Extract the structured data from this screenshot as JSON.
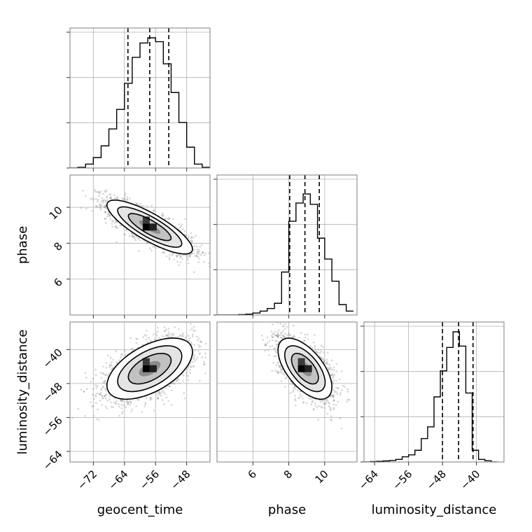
{
  "chart_data": {
    "type": "corner",
    "parameters": [
      "geocent_time",
      "phase",
      "luminosity_distance"
    ],
    "axes": {
      "geocent_time": {
        "range": [
          -78,
          -42
        ],
        "ticks": [
          -72,
          -64,
          -56,
          -48
        ],
        "tick_labels": [
          "−72",
          "−64",
          "−56",
          "−48"
        ],
        "label": "geocent_time"
      },
      "phase": {
        "range": [
          4.0,
          11.8
        ],
        "ticks": [
          6,
          8,
          10
        ],
        "tick_labels": [
          "6",
          "8",
          "10"
        ],
        "label": "phase"
      },
      "luminosity_distance": {
        "range": [
          -66.5,
          -33.5
        ],
        "ticks": [
          -64,
          -56,
          -48,
          -40
        ],
        "tick_labels": [
          "−64",
          "−56",
          "−48",
          "−40"
        ],
        "label": "luminosity_distance"
      }
    },
    "marginals": [
      {
        "parameter": "geocent_time",
        "quantiles": [
          -63.1,
          -57.5,
          -52.6
        ],
        "bin_edges": [
          -78,
          -76,
          -74,
          -72,
          -70,
          -68,
          -66,
          -64,
          -62,
          -60,
          -58,
          -56,
          -54,
          -52,
          -50,
          -48,
          -46,
          -44,
          -42
        ],
        "counts": [
          0,
          0.005,
          0.03,
          0.08,
          0.17,
          0.3,
          0.45,
          0.65,
          0.85,
          0.96,
          1.0,
          0.97,
          0.8,
          0.58,
          0.35,
          0.16,
          0.03,
          0.005
        ]
      },
      {
        "parameter": "phase",
        "quantiles": [
          8.05,
          8.9,
          9.7
        ],
        "bin_edges": [
          4.0,
          4.4,
          4.8,
          5.2,
          5.6,
          6.0,
          6.4,
          6.8,
          7.2,
          7.6,
          8.0,
          8.4,
          8.8,
          9.2,
          9.6,
          10.0,
          10.4,
          10.8,
          11.2,
          11.6
        ],
        "counts": [
          0,
          0,
          0,
          0.003,
          0.006,
          0.015,
          0.03,
          0.05,
          0.09,
          0.33,
          0.72,
          0.86,
          0.93,
          0.85,
          0.59,
          0.43,
          0.26,
          0.08,
          0.03
        ]
      },
      {
        "parameter": "luminosity_distance",
        "quantiles": [
          -48.0,
          -44.2,
          -40.8
        ],
        "bin_edges": [
          -66.5,
          -65.0,
          -63.5,
          -62.0,
          -60.5,
          -59.0,
          -57.5,
          -56.0,
          -54.5,
          -53.0,
          -51.5,
          -50.0,
          -48.5,
          -47.0,
          -45.5,
          -44.0,
          -42.5,
          -41.0,
          -39.5,
          -38.0,
          -36.5,
          -35.0
        ],
        "counts": [
          0,
          0.003,
          0.005,
          0.008,
          0.012,
          0.02,
          0.04,
          0.055,
          0.09,
          0.18,
          0.27,
          0.5,
          0.7,
          0.88,
          1.0,
          0.89,
          0.53,
          0.09,
          0.02,
          0.01,
          0
        ]
      }
    ],
    "joint": [
      {
        "x": "geocent_time",
        "y": "phase",
        "mean": [
          -57.5,
          8.9
        ],
        "sd": [
          5.5,
          0.75
        ],
        "corr": -0.82
      },
      {
        "x": "geocent_time",
        "y": "luminosity_distance",
        "mean": [
          -57.5,
          -44.5
        ],
        "sd": [
          5.5,
          3.6
        ],
        "corr": 0.55
      },
      {
        "x": "phase",
        "y": "luminosity_distance",
        "mean": [
          8.9,
          -44.5
        ],
        "sd": [
          0.75,
          3.6
        ],
        "corr": -0.6
      }
    ],
    "contour_levels_sigma": [
      0.5,
      1.0,
      1.5,
      2.0
    ],
    "grid": true
  }
}
